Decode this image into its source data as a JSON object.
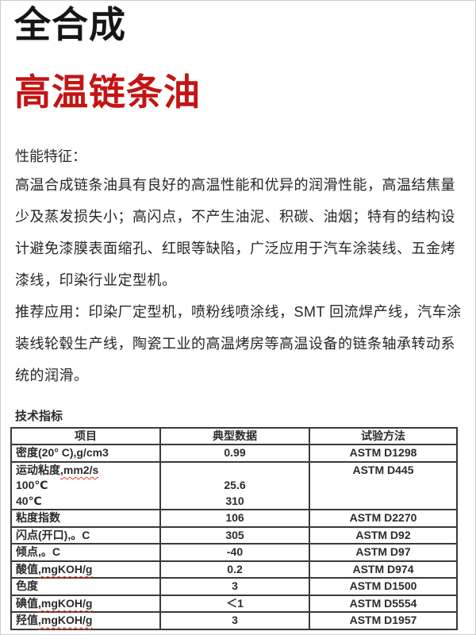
{
  "header": {
    "series_title": "全合成",
    "product_title": "高温链条油",
    "title_color": "#161616",
    "accent_color": "#c41414"
  },
  "performance": {
    "heading": "性能特征：",
    "lines": [
      "高温合成链条油具有良好的高温性能和优异的润滑性能，高温结焦量",
      "少及蒸发损失小；高闪点，不产生油泥、积碳、油烟；特有的结构设",
      "计避免漆膜表面缩孔、红眼等缺陷，广泛应用于汽车涂装线、五金烤",
      "漆线，印染行业定型机。"
    ]
  },
  "application": {
    "lines": [
      "推荐应用：印染厂定型机，喷粉线喷涂线，SMT 回流焊产线，汽车涂",
      "装线轮毂生产线，陶瓷工业的高温烤房等高温设备的链条轴承转动系",
      "统的润滑。"
    ]
  },
  "table": {
    "caption": "技术指标",
    "headers": [
      "项目",
      "典型数据",
      "试验方法"
    ],
    "border_color": "#3a3a3a",
    "spellcheck_underline_color": "#e23b2e",
    "rows": [
      {
        "item_lines": [
          {
            "t": "密度(20° C),g/cm3",
            "s": ""
          }
        ],
        "value_lines": [
          "0.99"
        ],
        "method": "ASTM D1298"
      },
      {
        "item_lines": [
          {
            "t": "运动粘度",
            "s": ",mm2/s"
          },
          {
            "t": "100℃",
            "s": ""
          },
          {
            "t": "40℃",
            "s": ""
          }
        ],
        "value_lines": [
          "",
          "25.6",
          "310"
        ],
        "method": "ASTM D445"
      },
      {
        "item_lines": [
          {
            "t": "粘度指数",
            "s": ""
          }
        ],
        "value_lines": [
          "106"
        ],
        "method": "ASTM D2270"
      },
      {
        "item_lines": [
          {
            "t": "闪点(开口),。C",
            "s": ""
          }
        ],
        "value_lines": [
          "305"
        ],
        "method": "ASTM D92"
      },
      {
        "item_lines": [
          {
            "t": "倾点,。C",
            "s": ""
          }
        ],
        "value_lines": [
          "-40"
        ],
        "method": "ASTM D97"
      },
      {
        "item_lines": [
          {
            "t": "酸值",
            "s": ",mgKOH/g"
          }
        ],
        "value_lines": [
          "0.2"
        ],
        "method": "ASTM D974"
      },
      {
        "item_lines": [
          {
            "t": "色度",
            "s": ""
          }
        ],
        "value_lines": [
          "3"
        ],
        "method": "ASTM D1500"
      },
      {
        "item_lines": [
          {
            "t": "碘值",
            "s": ",mgKOH/g"
          }
        ],
        "value_lines": [
          "＜1"
        ],
        "method": "ASTM D5554"
      },
      {
        "item_lines": [
          {
            "t": "羟值",
            "s": ",mgKOH/g"
          }
        ],
        "value_lines": [
          "3"
        ],
        "method": "ASTM D1957"
      }
    ]
  }
}
